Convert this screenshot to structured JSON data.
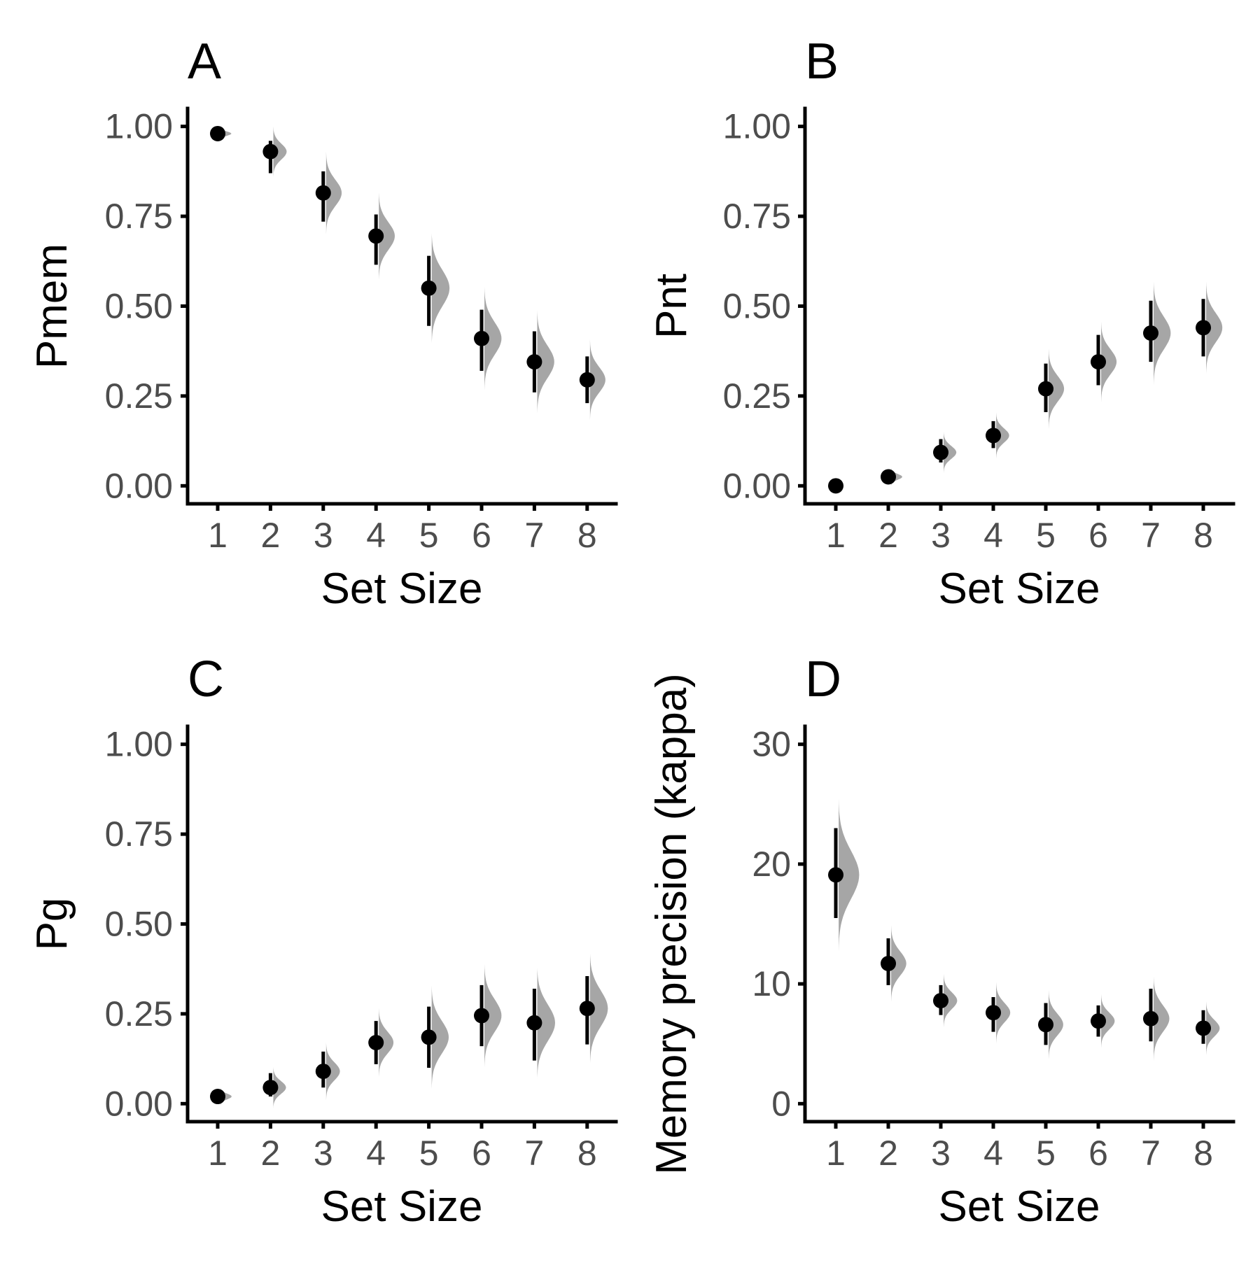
{
  "figure": {
    "colors": {
      "points": "#000000",
      "distribution": "#a6a6a6",
      "axis": "#000000",
      "tick_labels": "#4d4d4d"
    }
  },
  "chart_data": [
    {
      "panel": "A",
      "type": "scatter",
      "xlabel": "Set Size",
      "ylabel": "Pmem",
      "ylim": [
        -0.05,
        1.05
      ],
      "x_ticks": [
        "1",
        "2",
        "3",
        "4",
        "5",
        "6",
        "7",
        "8"
      ],
      "y_ticks": [
        "0.00",
        "0.25",
        "0.50",
        "0.75",
        "1.00"
      ],
      "y_tick_values": [
        0,
        0.25,
        0.5,
        0.75,
        1.0
      ],
      "grid": false,
      "points": [
        {
          "x": 1,
          "y": 0.98,
          "lo": 0.975,
          "hi": 0.985,
          "sd": 0.006
        },
        {
          "x": 2,
          "y": 0.93,
          "lo": 0.87,
          "hi": 0.96,
          "sd": 0.022
        },
        {
          "x": 3,
          "y": 0.815,
          "lo": 0.735,
          "hi": 0.875,
          "sd": 0.036
        },
        {
          "x": 4,
          "y": 0.695,
          "lo": 0.615,
          "hi": 0.755,
          "sd": 0.038
        },
        {
          "x": 5,
          "y": 0.55,
          "lo": 0.445,
          "hi": 0.64,
          "sd": 0.05
        },
        {
          "x": 6,
          "y": 0.41,
          "lo": 0.32,
          "hi": 0.49,
          "sd": 0.045
        },
        {
          "x": 7,
          "y": 0.345,
          "lo": 0.26,
          "hi": 0.43,
          "sd": 0.045
        },
        {
          "x": 8,
          "y": 0.295,
          "lo": 0.23,
          "hi": 0.36,
          "sd": 0.035
        }
      ]
    },
    {
      "panel": "B",
      "type": "scatter",
      "xlabel": "Set Size",
      "ylabel": "Pnt",
      "ylim": [
        -0.05,
        1.05
      ],
      "x_ticks": [
        "1",
        "2",
        "3",
        "4",
        "5",
        "6",
        "7",
        "8"
      ],
      "y_ticks": [
        "0.00",
        "0.25",
        "0.50",
        "0.75",
        "1.00"
      ],
      "y_tick_values": [
        0,
        0.25,
        0.5,
        0.75,
        1.0
      ],
      "grid": false,
      "points": [
        {
          "x": 1,
          "y": 0.0,
          "lo": 0.0,
          "hi": 0.0,
          "sd": 0.0
        },
        {
          "x": 2,
          "y": 0.025,
          "lo": 0.02,
          "hi": 0.035,
          "sd": 0.008
        },
        {
          "x": 3,
          "y": 0.093,
          "lo": 0.065,
          "hi": 0.13,
          "sd": 0.018
        },
        {
          "x": 4,
          "y": 0.14,
          "lo": 0.105,
          "hi": 0.18,
          "sd": 0.02
        },
        {
          "x": 5,
          "y": 0.27,
          "lo": 0.205,
          "hi": 0.34,
          "sd": 0.035
        },
        {
          "x": 6,
          "y": 0.345,
          "lo": 0.28,
          "hi": 0.42,
          "sd": 0.035
        },
        {
          "x": 7,
          "y": 0.425,
          "lo": 0.345,
          "hi": 0.515,
          "sd": 0.045
        },
        {
          "x": 8,
          "y": 0.44,
          "lo": 0.36,
          "hi": 0.52,
          "sd": 0.04
        }
      ]
    },
    {
      "panel": "C",
      "type": "scatter",
      "xlabel": "Set Size",
      "ylabel": "Pg",
      "ylim": [
        -0.05,
        1.05
      ],
      "x_ticks": [
        "1",
        "2",
        "3",
        "4",
        "5",
        "6",
        "7",
        "8"
      ],
      "y_ticks": [
        "0.00",
        "0.25",
        "0.50",
        "0.75",
        "1.00"
      ],
      "y_tick_values": [
        0,
        0.25,
        0.5,
        0.75,
        1.0
      ],
      "grid": false,
      "points": [
        {
          "x": 1,
          "y": 0.02,
          "lo": 0.015,
          "hi": 0.03,
          "sd": 0.008
        },
        {
          "x": 2,
          "y": 0.045,
          "lo": 0.02,
          "hi": 0.085,
          "sd": 0.018
        },
        {
          "x": 3,
          "y": 0.09,
          "lo": 0.045,
          "hi": 0.145,
          "sd": 0.025
        },
        {
          "x": 4,
          "y": 0.17,
          "lo": 0.11,
          "hi": 0.23,
          "sd": 0.03
        },
        {
          "x": 5,
          "y": 0.185,
          "lo": 0.1,
          "hi": 0.27,
          "sd": 0.045
        },
        {
          "x": 6,
          "y": 0.245,
          "lo": 0.16,
          "hi": 0.33,
          "sd": 0.045
        },
        {
          "x": 7,
          "y": 0.225,
          "lo": 0.12,
          "hi": 0.32,
          "sd": 0.05
        },
        {
          "x": 8,
          "y": 0.265,
          "lo": 0.165,
          "hi": 0.355,
          "sd": 0.05
        }
      ]
    },
    {
      "panel": "D",
      "type": "scatter",
      "xlabel": "Set Size",
      "ylabel": "Memory precision (kappa)",
      "ylim": [
        -1.5,
        31.5
      ],
      "x_ticks": [
        "1",
        "2",
        "3",
        "4",
        "5",
        "6",
        "7",
        "8"
      ],
      "y_ticks": [
        "0",
        "10",
        "20",
        "30"
      ],
      "y_tick_values": [
        0,
        10,
        20,
        30
      ],
      "grid": false,
      "points": [
        {
          "x": 1,
          "y": 19.1,
          "lo": 15.5,
          "hi": 23.0,
          "sd": 2.0
        },
        {
          "x": 2,
          "y": 11.7,
          "lo": 9.9,
          "hi": 13.8,
          "sd": 1.0
        },
        {
          "x": 3,
          "y": 8.6,
          "lo": 7.4,
          "hi": 9.9,
          "sd": 0.7
        },
        {
          "x": 4,
          "y": 7.6,
          "lo": 6.0,
          "hi": 8.9,
          "sd": 0.8
        },
        {
          "x": 5,
          "y": 6.6,
          "lo": 4.9,
          "hi": 8.4,
          "sd": 0.9
        },
        {
          "x": 6,
          "y": 6.9,
          "lo": 5.6,
          "hi": 8.2,
          "sd": 0.7
        },
        {
          "x": 7,
          "y": 7.1,
          "lo": 5.2,
          "hi": 9.6,
          "sd": 1.1
        },
        {
          "x": 8,
          "y": 6.3,
          "lo": 5.0,
          "hi": 7.8,
          "sd": 0.7
        }
      ]
    }
  ]
}
